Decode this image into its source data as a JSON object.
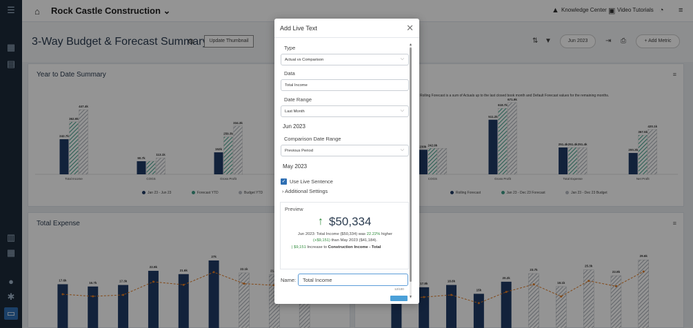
{
  "topbar": {
    "company": "Rock Castle Construction",
    "knowledge_center": "Knowledge Center",
    "video_tutorials": "Video Tutorials"
  },
  "page": {
    "title": "3-Way Budget & Forecast Summary",
    "update_thumbnail": "Update Thumbnail",
    "period": "Jun 2023",
    "add_metric": "Add Metric"
  },
  "panels": {
    "ytd": {
      "title": "Year to Date Summary",
      "chart_data": {
        "type": "bar",
        "categories": [
          "Total Income",
          "COGS",
          "Gross Profit",
          "Total Expense"
        ],
        "series": [
          {
            "name": "Jan 23 - Jun 23",
            "values": [
              242.7,
              90.7,
              152,
              104
            ]
          },
          {
            "name": "Forecast YTD",
            "values": [
              362.9,
              90.7,
              259.3,
              104
            ]
          },
          {
            "name": "Budget YTD",
            "values": [
              447.4,
              113.1,
              334.3,
              104
            ]
          }
        ],
        "data_labels": [
          [
            "242.7k",
            "362.9k",
            "447.4k"
          ],
          [
            "90.7k",
            "",
            "113.1k"
          ],
          [
            "152k",
            "259.3k",
            "334.3k"
          ],
          [
            "104k",
            "104k",
            "104k"
          ]
        ],
        "ylim": [
          0,
          500
        ]
      }
    },
    "forecast": {
      "note": "Rolling Forecast is a sum of Actuals up to the last closed book month and Default Forecast values for the remaining months.",
      "chart_data": {
        "type": "bar",
        "categories": [
          "",
          "COGS",
          "Gross Profit",
          "Total Expense",
          "Net Profit"
        ],
        "series": [
          {
            "name": "Rolling Forecast",
            "values": [
              0,
              230,
              511.2,
              251.4,
              200.3
            ]
          },
          {
            "name": "Jan 23 - Dec 23 Forecast",
            "values": [
              0,
              242.9,
              618.7,
              251.4,
              367.5
            ]
          },
          {
            "name": "Jan 23 - Dec 23 Budget",
            "values": [
              0,
              242.9,
              671.9,
              251.4,
              420.1
            ]
          }
        ],
        "data_labels": [
          [
            "",
            "",
            ""
          ],
          [
            "230k",
            "242.9k",
            ""
          ],
          [
            "511.2k",
            "618.7k",
            "671.9k"
          ],
          [
            "251.4k",
            "251.4k",
            "251.4k"
          ],
          [
            "200.3k",
            "367.5k",
            "420.1k"
          ]
        ],
        "ylim": [
          0,
          800
        ]
      }
    },
    "expense": {
      "title": "Total Expense",
      "chart_data": {
        "type": "bar",
        "categories": [
          "1",
          "2",
          "3",
          "4",
          "5",
          "6",
          "7",
          "8",
          "9",
          "10",
          "11",
          "12"
        ],
        "series": [
          {
            "name": "Total Expense",
            "values": [
              17.6,
              16.7,
              17.3,
              22.9,
              21.6,
              27,
              22.1,
              21.4,
              26.8,
              0,
              0,
              0
            ]
          }
        ],
        "data_labels": [
          "17.6k",
          "16.7k",
          "17.3k",
          "22.9k",
          "21.6k",
          "27k",
          "22.1k",
          "21.4k",
          "26.8k",
          "",
          "",
          ""
        ],
        "ylim": [
          0,
          30
        ]
      }
    },
    "expense_right": {
      "chart_data": {
        "type": "bar",
        "categories": [
          "1",
          "2",
          "3",
          "4",
          "5",
          "6",
          "7",
          "8",
          "9",
          "10",
          "11"
        ],
        "series": [
          {
            "name": "Expense",
            "values": [
              16.8,
              17.8,
              18.8,
              15,
              20.2,
              23.7,
              18.1,
              25.3,
              22.8,
              29.6,
              0
            ]
          }
        ],
        "data_labels": [
          "16.8k",
          "17.8k",
          "18.8k",
          "15k",
          "20.2k",
          "23.7k",
          "18.1k",
          "25.3k",
          "22.8k",
          "29.6k",
          ""
        ],
        "ylim": [
          0,
          32
        ]
      }
    }
  },
  "modal": {
    "title": "Add Live Text",
    "type_label": "Type",
    "type_value": "Actual vs Comparison",
    "data_label": "Data",
    "data_value": "Total Income",
    "date_range_label": "Date Range",
    "date_range_value": "Last Month",
    "date_range_resolved": "Jun 2023",
    "comparison_label": "Comparison Date Range",
    "comparison_value": "Previous Period",
    "comparison_resolved": "May 2023",
    "use_live_sentence": "Use Live Sentence",
    "additional_settings": "Additional Settings",
    "preview_label": "Preview",
    "preview_amount": "$50,334",
    "preview_sentence_a": "Jun 2023: Total Income ($50,334) was ",
    "preview_pct": "22.22%",
    "preview_sentence_b": " higher",
    "preview_delta": "(+$9,151)",
    "preview_sentence_c": " than May 2023 ($41,184).",
    "preview_inc_amount": "$9,151",
    "preview_inc_text": " Increase to ",
    "preview_inc_bold": "Construction Income - Total",
    "name_label": "Name:",
    "name_value": "Total Income",
    "counter": "12/100"
  },
  "colors": {
    "navy": "#1f3b66",
    "teal": "#3e9e88",
    "grey": "#b8bcc4",
    "accent": "#2f6fb3"
  }
}
